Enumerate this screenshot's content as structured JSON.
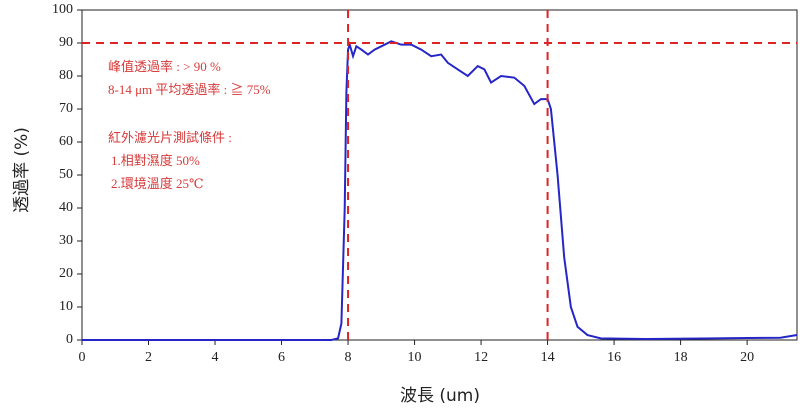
{
  "chart_data": {
    "type": "line",
    "x_label": "波長 (um)",
    "y_label": "透過率 (%)",
    "x": [
      0,
      7.5,
      7.7,
      7.8,
      7.9,
      7.95,
      8.0,
      8.05,
      8.15,
      8.25,
      8.4,
      8.6,
      8.8,
      9.0,
      9.3,
      9.6,
      9.9,
      10.2,
      10.5,
      10.8,
      11.0,
      11.3,
      11.6,
      11.9,
      12.1,
      12.3,
      12.6,
      13.0,
      13.3,
      13.6,
      13.8,
      14.0,
      14.1,
      14.3,
      14.5,
      14.7,
      14.9,
      15.2,
      15.6,
      17,
      19,
      20,
      21,
      21.5
    ],
    "values": [
      0,
      0,
      0.5,
      5,
      40,
      75,
      88,
      89.5,
      86,
      89,
      88,
      86.5,
      88,
      89,
      90.5,
      89.5,
      89.5,
      88,
      86,
      86.5,
      84,
      82,
      80,
      83,
      82,
      78,
      80,
      79.5,
      77,
      71.5,
      73,
      73,
      70,
      50,
      25,
      10,
      4,
      1.5,
      0.5,
      0.3,
      0.5,
      0.6,
      0.7,
      1.5
    ],
    "color": "#2626c8",
    "xlim": [
      0,
      21.5
    ],
    "ylim": [
      0,
      100
    ],
    "xticks": [
      0,
      2,
      4,
      6,
      8,
      10,
      12,
      14,
      16,
      18,
      20
    ],
    "yticks": [
      0,
      10,
      20,
      30,
      40,
      50,
      60,
      70,
      80,
      90,
      100
    ],
    "reference_lines": {
      "color": "#dc2424",
      "y": [
        90
      ],
      "x": [
        8,
        14
      ]
    },
    "annotations": [
      "峰值透過率 : > 90 %",
      "8-14 μm 平均透過率 : ≧ 75%",
      "紅外濾光片測試條件 :",
      "1.相對濕度 50%",
      "2.環境溫度 25℃"
    ]
  }
}
